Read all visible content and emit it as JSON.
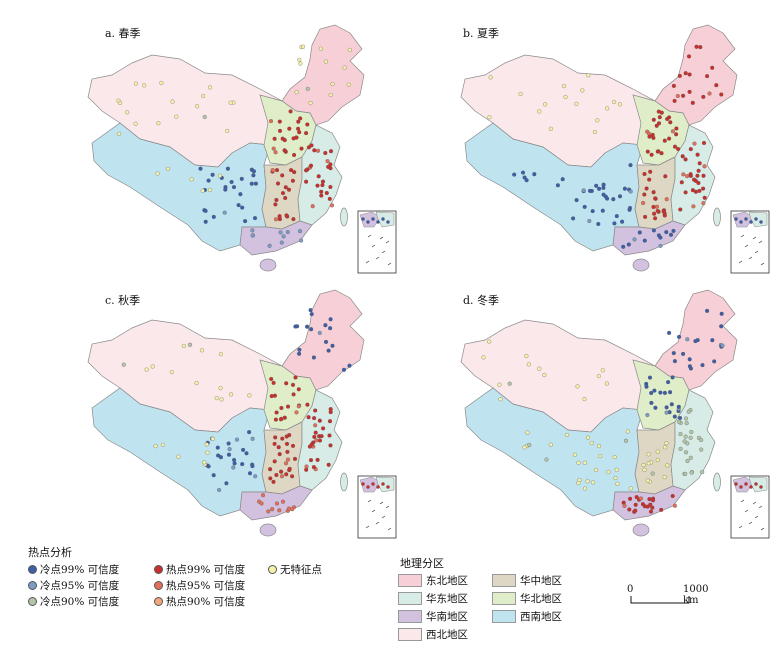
{
  "panels": [
    {
      "label": "a. 春季",
      "hot_cluster": "north-east-central",
      "cold_cluster": "south-west"
    },
    {
      "label": "b. 夏季",
      "hot_cluster": "north-central-wide",
      "cold_cluster": "south-west"
    },
    {
      "label": "c. 秋季",
      "hot_cluster": "east-central",
      "cold_cluster": "south-west-and-north-east"
    },
    {
      "label": "d. 冬季",
      "hot_cluster": "south",
      "cold_cluster": "north-and-east"
    }
  ],
  "hotspot_legend": {
    "title": "热点分析",
    "items": [
      {
        "label": "冷点99% 可信度",
        "color": "#3e5fa8"
      },
      {
        "label": "冷点95% 可信度",
        "color": "#7e9bc4"
      },
      {
        "label": "冷点90% 可信度",
        "color": "#b4c4a8"
      },
      {
        "label": "热点99% 可信度",
        "color": "#c8302c"
      },
      {
        "label": "热点95% 可信度",
        "color": "#e0705a"
      },
      {
        "label": "热点90% 可信度",
        "color": "#f0a87a"
      },
      {
        "label": "无特征点",
        "color": "#f4f2a8"
      }
    ]
  },
  "region_legend": {
    "title": "地理分区",
    "items": [
      {
        "label": "东北地区",
        "color": "#f7cfd6"
      },
      {
        "label": "华东地区",
        "color": "#d7ece6"
      },
      {
        "label": "华南地区",
        "color": "#d2c2e0"
      },
      {
        "label": "西北地区",
        "color": "#fbe8ea"
      },
      {
        "label": "华中地区",
        "color": "#ddd7c4"
      },
      {
        "label": "华北地区",
        "color": "#dfeec9"
      },
      {
        "label": "西南地区",
        "color": "#bfe3ef"
      }
    ]
  },
  "scale_bar": {
    "start": "0",
    "end": "1000 km"
  }
}
